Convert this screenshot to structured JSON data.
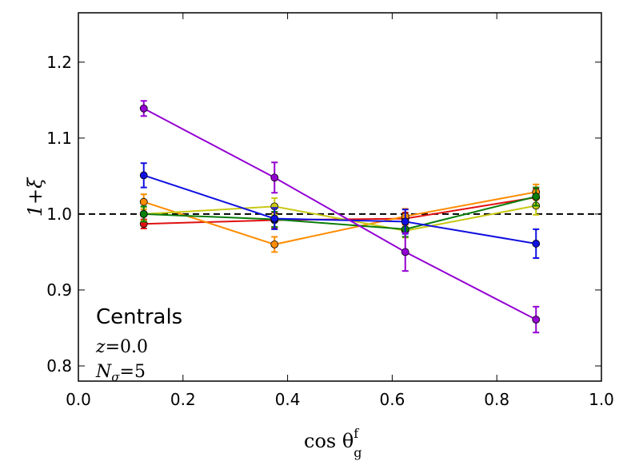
{
  "chart_data": {
    "type": "line",
    "title": "",
    "xlabel": "cos θ_g^f",
    "xlabel_parts": {
      "main": "cos θ",
      "sup": "f",
      "sub": "g"
    },
    "ylabel": "1+ξ",
    "xlim": [
      0.0,
      1.0
    ],
    "ylim": [
      0.78,
      1.265
    ],
    "xticks": [
      0.0,
      0.2,
      0.4,
      0.6,
      0.8,
      1.0
    ],
    "xtick_labels": [
      "0.0",
      "0.2",
      "0.4",
      "0.6",
      "0.8",
      "1.0"
    ],
    "yticks": [
      0.8,
      0.9,
      1.0,
      1.1,
      1.2
    ],
    "ytick_labels": [
      "0.8",
      "0.9",
      "1.0",
      "1.1",
      "1.2"
    ],
    "reference_line": {
      "y": 1.0,
      "style": "dashed",
      "color": "#000000"
    },
    "x": [
      0.125,
      0.375,
      0.625,
      0.875
    ],
    "series": [
      {
        "name": "red",
        "color": "#e01010",
        "values": [
          0.987,
          0.992,
          0.994,
          1.022
        ],
        "errors": [
          0.006,
          0.01,
          0.008,
          0.012
        ]
      },
      {
        "name": "orange",
        "color": "#ff8c00",
        "values": [
          1.016,
          0.96,
          0.997,
          1.029
        ],
        "errors": [
          0.01,
          0.01,
          0.01,
          0.01
        ]
      },
      {
        "name": "yellow",
        "color": "#c8c814",
        "values": [
          1.0,
          1.01,
          0.978,
          1.011
        ],
        "errors": [
          0.009,
          0.011,
          0.009,
          0.012
        ]
      },
      {
        "name": "green",
        "color": "#0a7d0a",
        "values": [
          1.0,
          0.993,
          0.98,
          1.023
        ],
        "errors": [
          0.01,
          0.01,
          0.01,
          0.012
        ]
      },
      {
        "name": "blue",
        "color": "#1010e0",
        "values": [
          1.051,
          0.994,
          0.99,
          0.961
        ],
        "errors": [
          0.016,
          0.014,
          0.016,
          0.019
        ]
      },
      {
        "name": "purple",
        "color": "#9400d3",
        "values": [
          1.139,
          1.048,
          0.95,
          0.861
        ],
        "errors": [
          0.01,
          0.02,
          0.025,
          0.017
        ]
      }
    ],
    "annotations": {
      "label": "Centrals",
      "redshift": {
        "var": "z",
        "eq": "=",
        "val": "0.0"
      },
      "nsigma": {
        "var": "N",
        "sub": "σ",
        "eq": "=",
        "val": "5"
      }
    }
  }
}
